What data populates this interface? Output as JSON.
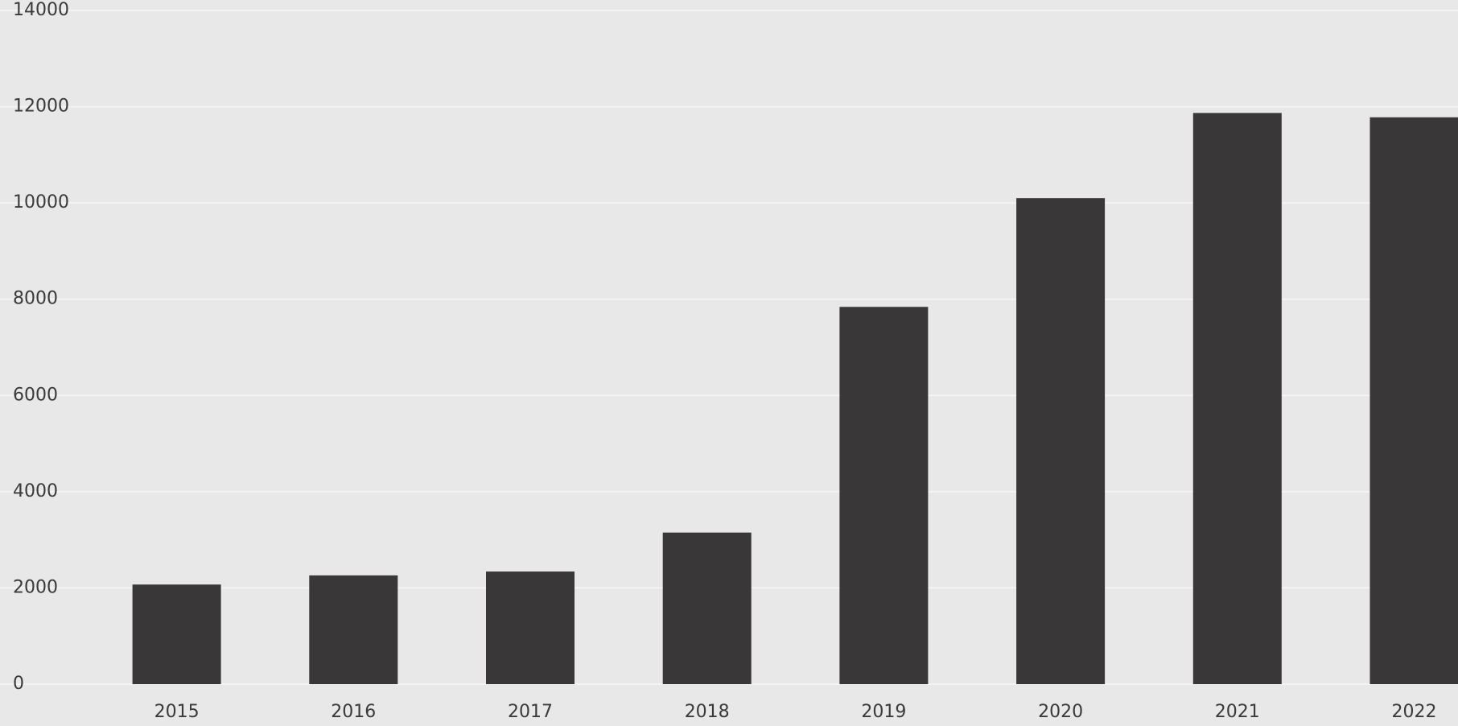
{
  "chart_data": {
    "type": "bar",
    "categories": [
      "2015",
      "2016",
      "2017",
      "2018",
      "2019",
      "2020",
      "2021",
      "2022"
    ],
    "values": [
      2070,
      2260,
      2340,
      3150,
      7840,
      10100,
      11870,
      11780
    ],
    "color": "#393738",
    "ylim": [
      0,
      14000
    ],
    "yticks": [
      0,
      2000,
      4000,
      6000,
      8000,
      10000,
      12000,
      14000
    ],
    "grid": true
  }
}
